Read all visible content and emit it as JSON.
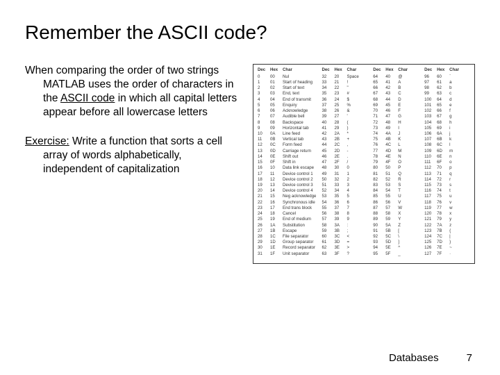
{
  "title": "Remember the ASCII code?",
  "para1": {
    "lead": "When comparing the order of two strings MATLAB uses the order of characters in the ",
    "underlined": "ASCII code",
    "mid": " in which ",
    "ital_tail": "all capital letters appear before all lowercase letters"
  },
  "para2": {
    "lead": "Exercise:",
    "body": "  Write a function that sorts a cell array of words alphabetically, independent of capitalization"
  },
  "ascii": {
    "headers": [
      "Dec",
      "Hex",
      "Char"
    ],
    "headers2": [
      "Dec",
      "Hex",
      "Char"
    ],
    "group1": [
      [
        "0",
        "00",
        "Nul"
      ],
      [
        "1",
        "01",
        "Start of heading"
      ],
      [
        "2",
        "02",
        "Start of text"
      ],
      [
        "3",
        "03",
        "End, text"
      ],
      [
        "4",
        "04",
        "End of transmit"
      ],
      [
        "5",
        "05",
        "Enquiry"
      ],
      [
        "6",
        "06",
        "Acknowledge"
      ],
      [
        "7",
        "07",
        "Audible bell"
      ],
      [
        "8",
        "08",
        "Backspace"
      ],
      [
        "9",
        "09",
        "Horizontal tab"
      ],
      [
        "10",
        "0A",
        "Line feed"
      ],
      [
        "11",
        "0B",
        "Vertical tab"
      ],
      [
        "12",
        "0C",
        "Form feed"
      ],
      [
        "13",
        "0D",
        "Carriage return"
      ],
      [
        "14",
        "0E",
        "Shift out"
      ],
      [
        "15",
        "0F",
        "Shift in"
      ],
      [
        "16",
        "10",
        "Data link escape"
      ],
      [
        "17",
        "11",
        "Device control 1"
      ],
      [
        "18",
        "12",
        "Device control 2"
      ],
      [
        "19",
        "13",
        "Device control 3"
      ],
      [
        "20",
        "14",
        "Device control 4"
      ],
      [
        "21",
        "15",
        "Neg acknowledge"
      ],
      [
        "22",
        "16",
        "Synchronous idle"
      ],
      [
        "23",
        "17",
        "End trans block"
      ],
      [
        "24",
        "18",
        "Cancel"
      ],
      [
        "25",
        "19",
        "End of medium"
      ],
      [
        "26",
        "1A",
        "Substitution"
      ],
      [
        "27",
        "1B",
        "Escape"
      ],
      [
        "28",
        "1C",
        "File separator"
      ],
      [
        "29",
        "1D",
        "Group separator"
      ],
      [
        "30",
        "1E",
        "Record separator"
      ],
      [
        "31",
        "1F",
        "Unit separator"
      ]
    ],
    "group2": [
      [
        "32",
        "20",
        "Space"
      ],
      [
        "33",
        "21",
        "!"
      ],
      [
        "34",
        "22",
        "\""
      ],
      [
        "35",
        "23",
        "#"
      ],
      [
        "36",
        "24",
        "$"
      ],
      [
        "37",
        "25",
        "%"
      ],
      [
        "38",
        "26",
        "&"
      ],
      [
        "39",
        "27",
        "'"
      ],
      [
        "40",
        "28",
        "("
      ],
      [
        "41",
        "29",
        ")"
      ],
      [
        "42",
        "2A",
        "*"
      ],
      [
        "43",
        "2B",
        "+"
      ],
      [
        "44",
        "2C",
        ","
      ],
      [
        "45",
        "2D",
        "-"
      ],
      [
        "46",
        "2E",
        "."
      ],
      [
        "47",
        "2F",
        "/"
      ],
      [
        "48",
        "30",
        "0"
      ],
      [
        "49",
        "31",
        "1"
      ],
      [
        "50",
        "32",
        "2"
      ],
      [
        "51",
        "33",
        "3"
      ],
      [
        "52",
        "34",
        "4"
      ],
      [
        "53",
        "35",
        "5"
      ],
      [
        "54",
        "36",
        "6"
      ],
      [
        "55",
        "37",
        "7"
      ],
      [
        "56",
        "38",
        "8"
      ],
      [
        "57",
        "39",
        "9"
      ],
      [
        "58",
        "3A",
        ":"
      ],
      [
        "59",
        "3B",
        ";"
      ],
      [
        "60",
        "3C",
        "<"
      ],
      [
        "61",
        "3D",
        "="
      ],
      [
        "62",
        "3E",
        ">"
      ],
      [
        "63",
        "3F",
        "?"
      ]
    ],
    "group3": [
      [
        "64",
        "40",
        "@"
      ],
      [
        "65",
        "41",
        "A"
      ],
      [
        "66",
        "42",
        "B"
      ],
      [
        "67",
        "43",
        "C"
      ],
      [
        "68",
        "44",
        "D"
      ],
      [
        "69",
        "45",
        "E"
      ],
      [
        "70",
        "46",
        "F"
      ],
      [
        "71",
        "47",
        "G"
      ],
      [
        "72",
        "48",
        "H"
      ],
      [
        "73",
        "49",
        "I"
      ],
      [
        "74",
        "4A",
        "J"
      ],
      [
        "75",
        "4B",
        "K"
      ],
      [
        "76",
        "4C",
        "L"
      ],
      [
        "77",
        "4D",
        "M"
      ],
      [
        "78",
        "4E",
        "N"
      ],
      [
        "79",
        "4F",
        "O"
      ],
      [
        "80",
        "50",
        "P"
      ],
      [
        "81",
        "51",
        "Q"
      ],
      [
        "82",
        "52",
        "R"
      ],
      [
        "83",
        "53",
        "S"
      ],
      [
        "84",
        "54",
        "T"
      ],
      [
        "85",
        "55",
        "U"
      ],
      [
        "86",
        "56",
        "V"
      ],
      [
        "87",
        "57",
        "W"
      ],
      [
        "88",
        "58",
        "X"
      ],
      [
        "89",
        "59",
        "Y"
      ],
      [
        "90",
        "5A",
        "Z"
      ],
      [
        "91",
        "5B",
        "["
      ],
      [
        "92",
        "5C",
        "\\"
      ],
      [
        "93",
        "5D",
        "]"
      ],
      [
        "94",
        "5E",
        "^"
      ],
      [
        "95",
        "5F",
        "_"
      ]
    ],
    "group4": [
      [
        "96",
        "60",
        "`"
      ],
      [
        "97",
        "61",
        "a"
      ],
      [
        "98",
        "62",
        "b"
      ],
      [
        "99",
        "63",
        "c"
      ],
      [
        "100",
        "64",
        "d"
      ],
      [
        "101",
        "65",
        "e"
      ],
      [
        "102",
        "66",
        "f"
      ],
      [
        "103",
        "67",
        "g"
      ],
      [
        "104",
        "68",
        "h"
      ],
      [
        "105",
        "69",
        "i"
      ],
      [
        "106",
        "6A",
        "j"
      ],
      [
        "107",
        "6B",
        "k"
      ],
      [
        "108",
        "6C",
        "l"
      ],
      [
        "109",
        "6D",
        "m"
      ],
      [
        "110",
        "6E",
        "n"
      ],
      [
        "111",
        "6F",
        "o"
      ],
      [
        "112",
        "70",
        "p"
      ],
      [
        "113",
        "71",
        "q"
      ],
      [
        "114",
        "72",
        "r"
      ],
      [
        "115",
        "73",
        "s"
      ],
      [
        "116",
        "74",
        "t"
      ],
      [
        "117",
        "75",
        "u"
      ],
      [
        "118",
        "76",
        "v"
      ],
      [
        "119",
        "77",
        "w"
      ],
      [
        "120",
        "78",
        "x"
      ],
      [
        "121",
        "79",
        "y"
      ],
      [
        "122",
        "7A",
        "z"
      ],
      [
        "123",
        "7B",
        "{"
      ],
      [
        "124",
        "7C",
        "|"
      ],
      [
        "125",
        "7D",
        "}"
      ],
      [
        "126",
        "7E",
        "~"
      ],
      [
        "127",
        "7F",
        "·"
      ]
    ]
  },
  "footer": {
    "label": "Databases",
    "page": "7"
  },
  "colors": {
    "text": "#000000",
    "bg": "#ffffff",
    "table_border": "#333333"
  }
}
